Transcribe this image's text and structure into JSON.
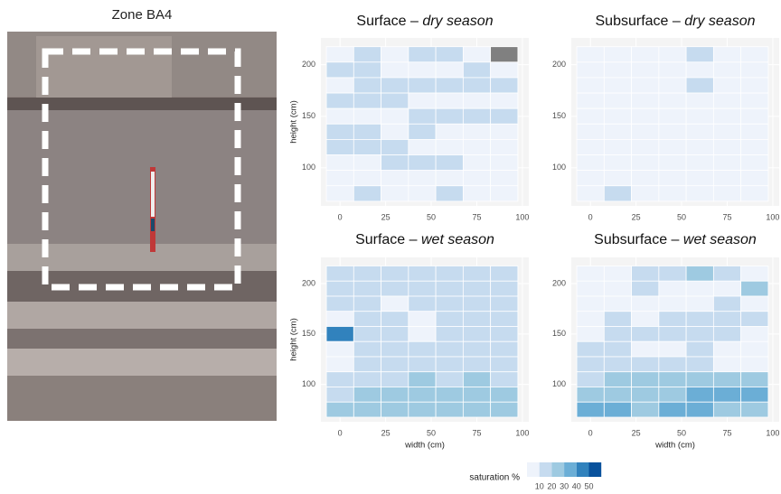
{
  "photo": {
    "label": "Zone BA4"
  },
  "legend": {
    "title": "saturation %",
    "ticks": [
      10,
      20,
      30,
      40,
      50
    ],
    "colors": [
      "#eef3fb",
      "#c6dbef",
      "#9ecae1",
      "#6baed6",
      "#3182bd",
      "#08519c"
    ],
    "na_color": "#808080"
  },
  "chart_data": [
    {
      "type": "heatmap",
      "title": {
        "text": "Surface – ",
        "italic": "dry season"
      },
      "y_label": "height (cm)",
      "x": [
        0,
        15,
        30,
        45,
        60,
        75,
        90
      ],
      "y": [
        210,
        195,
        180,
        165,
        150,
        135,
        120,
        105,
        90,
        75
      ],
      "cell_width": 15,
      "cell_height": 15,
      "xlim": [
        -10.5,
        103.5
      ],
      "ylim": [
        63,
        226
      ],
      "xticks": [
        0,
        25,
        50,
        75,
        100
      ],
      "yticks": [
        100,
        150,
        200
      ],
      "values": [
        [
          5,
          15,
          5,
          15,
          15,
          5,
          null
        ],
        [
          15,
          15,
          5,
          5,
          5,
          15,
          5
        ],
        [
          5,
          15,
          15,
          15,
          15,
          15,
          15
        ],
        [
          15,
          15,
          15,
          5,
          5,
          5,
          5
        ],
        [
          5,
          5,
          5,
          15,
          15,
          15,
          15
        ],
        [
          15,
          15,
          5,
          15,
          5,
          5,
          5
        ],
        [
          15,
          15,
          15,
          5,
          5,
          5,
          5
        ],
        [
          5,
          5,
          15,
          15,
          15,
          5,
          5
        ],
        [
          5,
          5,
          5,
          5,
          5,
          5,
          5
        ],
        [
          5,
          15,
          5,
          5,
          15,
          5,
          5
        ]
      ]
    },
    {
      "type": "heatmap",
      "title": {
        "text": "Subsurface – ",
        "italic": "dry season"
      },
      "x": [
        0,
        15,
        30,
        45,
        60,
        75,
        90
      ],
      "y": [
        210,
        195,
        180,
        165,
        150,
        135,
        120,
        105,
        90,
        75
      ],
      "cell_width": 15,
      "cell_height": 15,
      "xlim": [
        -10.5,
        103.5
      ],
      "ylim": [
        63,
        226
      ],
      "xticks": [
        0,
        25,
        50,
        75,
        100
      ],
      "yticks": [
        100,
        150,
        200
      ],
      "values": [
        [
          5,
          5,
          5,
          5,
          15,
          5,
          5
        ],
        [
          5,
          5,
          5,
          5,
          5,
          5,
          5
        ],
        [
          5,
          5,
          5,
          5,
          15,
          5,
          5
        ],
        [
          5,
          5,
          5,
          5,
          5,
          5,
          5
        ],
        [
          5,
          5,
          5,
          5,
          5,
          5,
          5
        ],
        [
          5,
          5,
          5,
          5,
          5,
          5,
          5
        ],
        [
          5,
          5,
          5,
          5,
          5,
          5,
          5
        ],
        [
          5,
          5,
          5,
          5,
          5,
          5,
          5
        ],
        [
          5,
          5,
          5,
          5,
          5,
          5,
          5
        ],
        [
          5,
          15,
          5,
          5,
          5,
          5,
          5
        ]
      ]
    },
    {
      "type": "heatmap",
      "title": {
        "text": "Surface – ",
        "italic": "wet season"
      },
      "y_label": "height (cm)",
      "x_label": "width (cm)",
      "x": [
        0,
        15,
        30,
        45,
        60,
        75,
        90
      ],
      "y": [
        210,
        195,
        180,
        165,
        150,
        135,
        120,
        105,
        90,
        75
      ],
      "cell_width": 15,
      "cell_height": 15,
      "xlim": [
        -10.5,
        103.5
      ],
      "ylim": [
        63,
        226
      ],
      "xticks": [
        0,
        25,
        50,
        75,
        100
      ],
      "yticks": [
        100,
        150,
        200
      ],
      "values": [
        [
          15,
          15,
          15,
          15,
          15,
          15,
          15
        ],
        [
          15,
          15,
          15,
          15,
          15,
          15,
          15
        ],
        [
          15,
          15,
          5,
          15,
          15,
          15,
          15
        ],
        [
          5,
          15,
          15,
          5,
          15,
          15,
          15
        ],
        [
          45,
          15,
          15,
          5,
          15,
          15,
          15
        ],
        [
          5,
          15,
          15,
          15,
          15,
          15,
          15
        ],
        [
          5,
          15,
          15,
          15,
          15,
          15,
          15
        ],
        [
          15,
          15,
          15,
          25,
          15,
          25,
          15
        ],
        [
          15,
          25,
          25,
          25,
          25,
          25,
          25
        ],
        [
          25,
          25,
          25,
          25,
          25,
          25,
          25
        ]
      ]
    },
    {
      "type": "heatmap",
      "title": {
        "text": "Subsurface – ",
        "italic": "wet season"
      },
      "x_label": "width (cm)",
      "x": [
        0,
        15,
        30,
        45,
        60,
        75,
        90
      ],
      "y": [
        210,
        195,
        180,
        165,
        150,
        135,
        120,
        105,
        90,
        75
      ],
      "cell_width": 15,
      "cell_height": 15,
      "xlim": [
        -10.5,
        103.5
      ],
      "ylim": [
        63,
        226
      ],
      "xticks": [
        0,
        25,
        50,
        75,
        100
      ],
      "yticks": [
        100,
        150,
        200
      ],
      "values": [
        [
          5,
          5,
          15,
          15,
          25,
          15,
          5
        ],
        [
          5,
          5,
          15,
          5,
          5,
          5,
          25
        ],
        [
          5,
          5,
          5,
          5,
          5,
          15,
          5
        ],
        [
          5,
          15,
          5,
          15,
          15,
          15,
          15
        ],
        [
          5,
          15,
          15,
          15,
          15,
          15,
          5
        ],
        [
          15,
          15,
          5,
          5,
          15,
          5,
          5
        ],
        [
          15,
          15,
          15,
          15,
          15,
          5,
          5
        ],
        [
          15,
          25,
          25,
          25,
          25,
          25,
          25
        ],
        [
          25,
          25,
          25,
          25,
          35,
          35,
          35
        ],
        [
          35,
          35,
          25,
          35,
          35,
          25,
          25
        ]
      ]
    }
  ]
}
